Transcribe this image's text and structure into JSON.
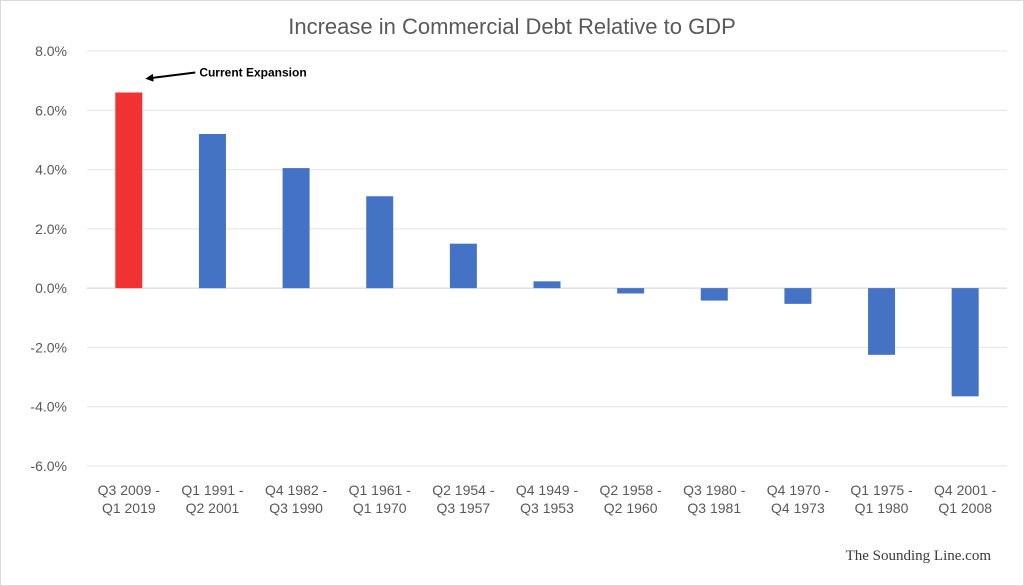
{
  "chart_data": {
    "type": "bar",
    "title": "Increase in Commercial Debt Relative to GDP",
    "xlabel": "",
    "ylabel": "",
    "ylim": [
      -6,
      8
    ],
    "yticks": [
      "-6.0%",
      "-4.0%",
      "-2.0%",
      "0.0%",
      "2.0%",
      "4.0%",
      "6.0%",
      "8.0%"
    ],
    "ytick_values": [
      -6,
      -4,
      -2,
      0,
      2,
      4,
      6,
      8
    ],
    "grid": true,
    "categories": [
      [
        "Q3 2009 -",
        "Q1 2019"
      ],
      [
        "Q1 1991 -",
        "Q2 2001"
      ],
      [
        "Q4 1982 -",
        "Q3 1990"
      ],
      [
        "Q1 1961 -",
        "Q1 1970"
      ],
      [
        "Q2 1954 -",
        "Q3 1957"
      ],
      [
        "Q4 1949 -",
        "Q3 1953"
      ],
      [
        "Q2 1958 -",
        "Q2 1960"
      ],
      [
        "Q3 1980 -",
        "Q3 1981"
      ],
      [
        "Q4 1970 -",
        "Q4 1973"
      ],
      [
        "Q1 1975 -",
        "Q1 1980"
      ],
      [
        "Q4 2001 -",
        "Q1 2008"
      ]
    ],
    "values": [
      6.6,
      5.2,
      4.05,
      3.1,
      1.5,
      0.23,
      -0.18,
      -0.42,
      -0.53,
      -2.25,
      -3.65
    ],
    "colors": [
      "#f03232",
      "#4472c4",
      "#4472c4",
      "#4472c4",
      "#4472c4",
      "#4472c4",
      "#4472c4",
      "#4472c4",
      "#4472c4",
      "#4472c4",
      "#4472c4"
    ],
    "annotations": [
      {
        "text": "Current Expansion",
        "target_index": 0
      }
    ]
  },
  "watermark": "The Sounding Line.com"
}
